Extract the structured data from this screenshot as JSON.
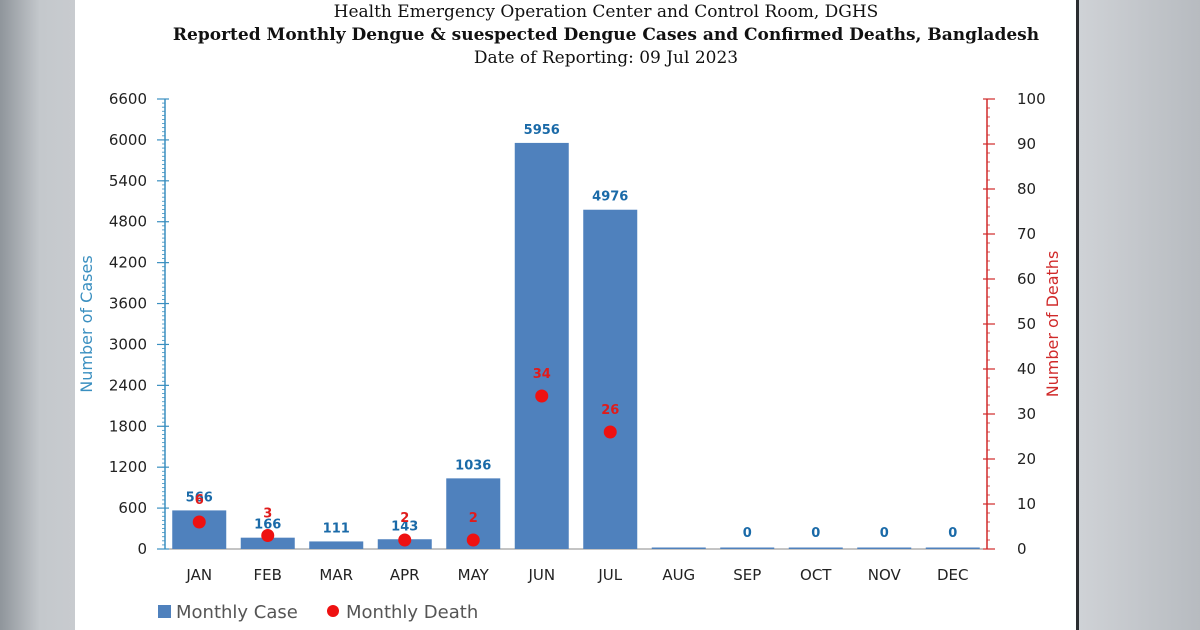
{
  "header": {
    "line1": "Health Emergency Operation Center and Control Room, DGHS",
    "line2": "Reported Monthly Dengue & suespected Dengue Cases and Confirmed Deaths, Bangladesh",
    "line3": "Date of Reporting: 09 Jul 2023"
  },
  "colors": {
    "bar": "#4f81bd",
    "death": "#ee1111",
    "left_axis": "#3a8fc0",
    "right_axis": "#d02a2a",
    "case_label": "#1a6aa8",
    "death_label": "#e01b1b"
  },
  "chart_data": {
    "type": "bar",
    "categories": [
      "JAN",
      "FEB",
      "MAR",
      "APR",
      "MAY",
      "JUN",
      "JUL",
      "AUG",
      "SEP",
      "OCT",
      "NOV",
      "DEC"
    ],
    "series": [
      {
        "name": "Monthly Case",
        "axis": "left",
        "kind": "bar",
        "values": [
          566,
          166,
          111,
          143,
          1036,
          5956,
          4976,
          0,
          0,
          0,
          0,
          0
        ],
        "labels": [
          "566",
          "166",
          "111",
          "143",
          "1036",
          "5956",
          "4976",
          "",
          "0",
          "0",
          "0",
          "0"
        ]
      },
      {
        "name": "Monthly Death",
        "axis": "right",
        "kind": "scatter",
        "values": [
          6,
          3,
          null,
          2,
          2,
          34,
          26,
          null,
          null,
          null,
          null,
          null
        ],
        "labels": [
          "6",
          "3",
          "",
          "2",
          "2",
          "34",
          "26",
          "",
          "",
          "",
          "",
          ""
        ]
      }
    ],
    "ylabel_left": "Number of Cases",
    "ylabel_right": "Number of Deaths",
    "ylim_left": [
      0,
      6600
    ],
    "ylim_right": [
      0,
      100
    ],
    "yticks_left": [
      "0",
      "600",
      "1200",
      "1800",
      "2400",
      "3000",
      "3600",
      "4200",
      "4800",
      "5400",
      "6000",
      "6600"
    ],
    "yticks_right": [
      "0",
      "10",
      "20",
      "30",
      "40",
      "50",
      "60",
      "70",
      "80",
      "90",
      "100"
    ],
    "legend": [
      "Monthly Case",
      "Monthly Death"
    ]
  }
}
